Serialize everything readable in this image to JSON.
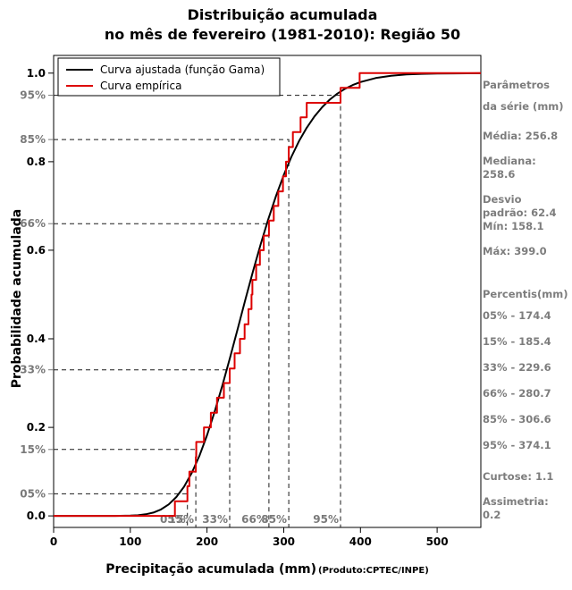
{
  "title": {
    "line1": "Distribuição acumulada",
    "line2": "no mês de fevereiro (1981-2010): Região 50"
  },
  "axes": {
    "x_label": "Precipitação acumulada (mm)",
    "y_label": "Probabilidade acumulada",
    "credit": "(Produto:CPTEC/INPE)"
  },
  "panel": {
    "header_line1": "Parâmetros",
    "header_line2": "da série (mm)",
    "stats": [
      "Média: 256.8",
      "Mediana: 258.6",
      "Desvio\npadrão: 62.4\nMín: 158.1",
      "Máx: 399.0"
    ],
    "percentiles_header": "Percentis(mm)",
    "percentiles": [
      "05% - 174.4",
      "15% - 185.4",
      "33% - 229.6",
      "66% - 280.7",
      "85% - 306.6",
      "95% - 374.1"
    ],
    "shape_stats": [
      "Curtose: 1.1",
      "Assimetria: 0.2"
    ]
  },
  "chart_data": {
    "type": "line",
    "title": "Distribuição acumulada no mês de fevereiro (1981-2010): Região 50",
    "xlabel": "Precipitação acumulada (mm)",
    "ylabel": "Probabilidade acumulada",
    "xlim": [
      0,
      557
    ],
    "ylim": [
      -0.026,
      1.04
    ],
    "x_ticks": [
      0,
      100,
      200,
      300,
      400,
      500
    ],
    "y_ticks": [
      0.0,
      0.2,
      0.4,
      0.6,
      0.8,
      1.0
    ],
    "grid": false,
    "legend_position": "top-left",
    "dashed_color": "#1a1a1a",
    "percentiles": [
      {
        "label": "05%",
        "p": 0.05,
        "value": 174.4
      },
      {
        "label": "15%",
        "p": 0.15,
        "value": 185.4
      },
      {
        "label": "33%",
        "p": 0.33,
        "value": 229.6
      },
      {
        "label": "66%",
        "p": 0.66,
        "value": 280.7
      },
      {
        "label": "85%",
        "p": 0.85,
        "value": 306.6
      },
      {
        "label": "95%",
        "p": 0.95,
        "value": 374.1
      }
    ],
    "series": [
      {
        "name": "Curva ajustada (função Gama)",
        "color": "#000000",
        "type": "smooth",
        "x": [
          0,
          60,
          80,
          100,
          110,
          120,
          130,
          140,
          150,
          160,
          170,
          180,
          190,
          200,
          210,
          220,
          230,
          240,
          250,
          260,
          270,
          280,
          290,
          300,
          310,
          320,
          330,
          340,
          350,
          360,
          370,
          380,
          390,
          400,
          420,
          440,
          460,
          480,
          500,
          557
        ],
        "y": [
          0,
          0,
          0.0001,
          0.0006,
          0.0015,
          0.0036,
          0.0076,
          0.0146,
          0.0259,
          0.0427,
          0.0659,
          0.0969,
          0.1355,
          0.1819,
          0.2356,
          0.2946,
          0.3576,
          0.4229,
          0.4885,
          0.5526,
          0.6138,
          0.6709,
          0.7231,
          0.7698,
          0.8109,
          0.8465,
          0.8767,
          0.9021,
          0.923,
          0.9401,
          0.9537,
          0.9647,
          0.9732,
          0.9799,
          0.9889,
          0.994,
          0.9969,
          0.9984,
          0.9992,
          0.9999
        ]
      },
      {
        "name": "Curva empírica",
        "color": "#dd0000",
        "type": "step",
        "x": [
          158.1,
          174.4,
          177.0,
          185.4,
          186.0,
          196.0,
          205.0,
          213.0,
          222.0,
          229.6,
          236.0,
          243.0,
          249.0,
          254.0,
          258.0,
          259.2,
          264.0,
          269.0,
          274.0,
          280.7,
          287.0,
          293.0,
          299.0,
          303.0,
          306.6,
          312.0,
          322.0,
          330.0,
          374.1,
          399.0
        ],
        "y": [
          0.033,
          0.067,
          0.1,
          0.133,
          0.167,
          0.2,
          0.233,
          0.267,
          0.3,
          0.333,
          0.367,
          0.4,
          0.433,
          0.467,
          0.5,
          0.533,
          0.567,
          0.6,
          0.633,
          0.667,
          0.7,
          0.733,
          0.767,
          0.8,
          0.833,
          0.867,
          0.9,
          0.933,
          0.967,
          1.0
        ]
      }
    ]
  }
}
